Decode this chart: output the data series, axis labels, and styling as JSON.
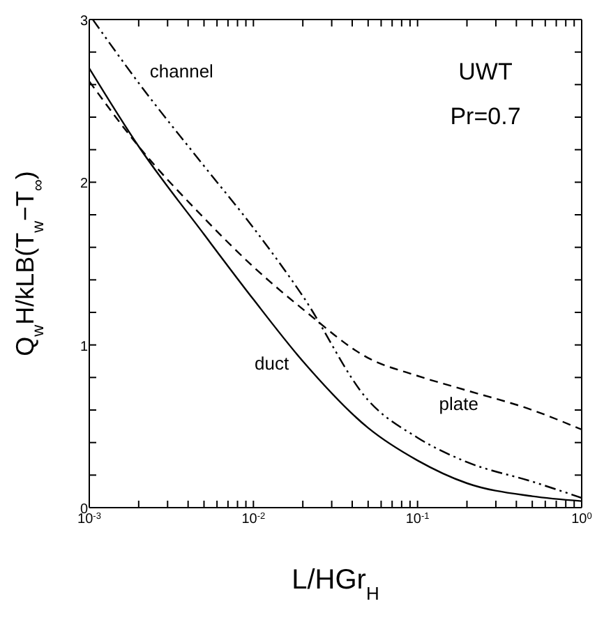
{
  "chart_data": {
    "type": "line",
    "xlabel": "L/HGr$_{H}$",
    "ylabel": "Q$_{w}$H/kLB(T$_{w}$−T$_{∞}$)",
    "annotations": [
      "UWT",
      "Pr=0.7"
    ],
    "log": "x",
    "xlim": [
      0.001,
      1
    ],
    "xticks": [
      {
        "value": 0.001,
        "label": "10$^{-3}$"
      },
      {
        "value": 0.002,
        "label": null
      },
      {
        "value": 0.003,
        "label": null
      },
      {
        "value": 0.004,
        "label": null
      },
      {
        "value": 0.005,
        "label": null
      },
      {
        "value": 0.006,
        "label": null
      },
      {
        "value": 0.007,
        "label": null
      },
      {
        "value": 0.008,
        "label": null
      },
      {
        "value": 0.009,
        "label": null
      },
      {
        "value": 0.01,
        "label": "10$^{-2}$"
      },
      {
        "value": 0.02,
        "label": null
      },
      {
        "value": 0.03,
        "label": null
      },
      {
        "value": 0.04,
        "label": null
      },
      {
        "value": 0.05,
        "label": null
      },
      {
        "value": 0.06,
        "label": null
      },
      {
        "value": 0.07,
        "label": null
      },
      {
        "value": 0.08,
        "label": null
      },
      {
        "value": 0.09,
        "label": null
      },
      {
        "value": 0.1,
        "label": "10$^{-1}$"
      },
      {
        "value": 0.2,
        "label": null
      },
      {
        "value": 0.3,
        "label": null
      },
      {
        "value": 0.4,
        "label": null
      },
      {
        "value": 0.5,
        "label": null
      },
      {
        "value": 0.6,
        "label": null
      },
      {
        "value": 0.7,
        "label": null
      },
      {
        "value": 0.8,
        "label": null
      },
      {
        "value": 0.9,
        "label": null
      },
      {
        "value": 1,
        "label": "10$^{0}$"
      }
    ],
    "ylim": [
      0,
      3
    ],
    "yticks": [
      0,
      {
        "value": 0.2,
        "label": null
      },
      {
        "value": 0.4,
        "label": null
      },
      {
        "value": 0.6,
        "label": null
      },
      {
        "value": 0.8,
        "label": null
      },
      1,
      {
        "value": 1.2,
        "label": null
      },
      {
        "value": 1.4,
        "label": null
      },
      {
        "value": 1.6,
        "label": null
      },
      {
        "value": 1.8,
        "label": null
      },
      2,
      {
        "value": 2.2,
        "label": null
      },
      {
        "value": 2.4,
        "label": null
      },
      {
        "value": 2.6,
        "label": null
      },
      {
        "value": 2.8,
        "label": null
      },
      3
    ],
    "grid": false,
    "legend": false,
    "marker": "none",
    "series": [
      {
        "name": "duct",
        "color": "#000000",
        "line_style": "solid",
        "x": [
          0.001,
          0.002,
          0.005,
          0.01,
          0.02,
          0.05,
          0.1,
          0.2,
          0.5,
          1
        ],
        "values": [
          2.7,
          2.22,
          1.68,
          1.28,
          0.9,
          0.49,
          0.29,
          0.15,
          0.07,
          0.04
        ]
      },
      {
        "name": "plate",
        "color": "#000000",
        "line_style": "dashed",
        "x": [
          0.001,
          0.002,
          0.005,
          0.01,
          0.02,
          0.05,
          0.1,
          0.2,
          0.5,
          1
        ],
        "values": [
          2.62,
          2.22,
          1.78,
          1.48,
          1.22,
          0.92,
          0.81,
          0.72,
          0.6,
          0.48
        ]
      },
      {
        "name": "channel",
        "color": "#000000",
        "line_style": "dashdot",
        "x": [
          0.00105,
          0.002,
          0.005,
          0.01,
          0.02,
          0.05,
          0.1,
          0.2,
          0.5,
          1
        ],
        "values": [
          3.0,
          2.61,
          2.1,
          1.72,
          1.3,
          0.66,
          0.43,
          0.28,
          0.16,
          0.06
        ]
      }
    ]
  }
}
